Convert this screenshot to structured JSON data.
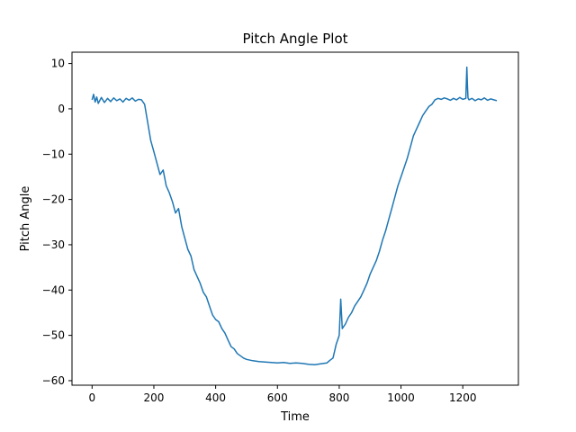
{
  "chart_data": {
    "type": "line",
    "title": "Pitch Angle Plot",
    "xlabel": "Time",
    "ylabel": "Pitch Angle",
    "xlim": [
      -65,
      1380
    ],
    "ylim": [
      -61,
      12.5
    ],
    "x_ticks": [
      0,
      200,
      400,
      600,
      800,
      1000,
      1200
    ],
    "y_ticks": [
      10,
      0,
      -10,
      -20,
      -30,
      -40,
      -50,
      -60
    ],
    "x_tick_labels": [
      "0",
      "200",
      "400",
      "600",
      "800",
      "1000",
      "1200"
    ],
    "y_tick_labels": [
      "10",
      "0",
      "−10",
      "−20",
      "−30",
      "−40",
      "−50",
      "−60"
    ],
    "grid": false,
    "series": [
      {
        "color": "#1f77b4",
        "x": [
          0,
          5,
          10,
          15,
          20,
          30,
          40,
          50,
          60,
          70,
          80,
          90,
          100,
          110,
          120,
          130,
          140,
          150,
          160,
          170,
          180,
          190,
          200,
          210,
          220,
          230,
          240,
          250,
          260,
          270,
          280,
          290,
          300,
          310,
          320,
          330,
          340,
          350,
          360,
          370,
          380,
          390,
          400,
          410,
          420,
          430,
          440,
          450,
          460,
          470,
          480,
          490,
          500,
          520,
          540,
          560,
          580,
          600,
          620,
          640,
          660,
          680,
          700,
          720,
          740,
          760,
          770,
          780,
          785,
          790,
          795,
          800,
          805,
          810,
          820,
          830,
          840,
          850,
          860,
          870,
          880,
          890,
          900,
          910,
          920,
          930,
          940,
          950,
          960,
          970,
          980,
          990,
          1000,
          1010,
          1020,
          1030,
          1040,
          1050,
          1060,
          1070,
          1080,
          1090,
          1100,
          1110,
          1120,
          1130,
          1140,
          1150,
          1160,
          1170,
          1180,
          1190,
          1200,
          1210,
          1213,
          1215,
          1217,
          1220,
          1230,
          1240,
          1250,
          1260,
          1270,
          1280,
          1290,
          1300,
          1310
        ],
        "y": [
          2.0,
          3.2,
          1.5,
          2.6,
          1.2,
          2.5,
          1.4,
          2.3,
          1.6,
          2.4,
          1.8,
          2.2,
          1.5,
          2.3,
          1.9,
          2.4,
          1.7,
          2.1,
          2.0,
          1.0,
          -3.0,
          -7.0,
          -9.5,
          -12.0,
          -14.5,
          -13.5,
          -17.0,
          -18.5,
          -20.5,
          -23.0,
          -22.0,
          -26.0,
          -28.5,
          -31.0,
          -32.5,
          -35.5,
          -37.0,
          -38.5,
          -40.5,
          -41.5,
          -43.5,
          -45.5,
          -46.5,
          -47.0,
          -48.5,
          -49.5,
          -51.0,
          -52.5,
          -53.0,
          -54.0,
          -54.5,
          -55.0,
          -55.3,
          -55.6,
          -55.8,
          -55.9,
          -56.0,
          -56.1,
          -56.0,
          -56.2,
          -56.1,
          -56.2,
          -56.4,
          -56.5,
          -56.3,
          -56.1,
          -55.5,
          -55.0,
          -53.5,
          -52.0,
          -51.0,
          -50.0,
          -42.0,
          -48.5,
          -47.5,
          -46.0,
          -45.0,
          -43.5,
          -42.5,
          -41.5,
          -40.0,
          -38.5,
          -36.5,
          -35.0,
          -33.5,
          -31.5,
          -29.0,
          -27.0,
          -24.5,
          -22.0,
          -19.5,
          -17.0,
          -15.0,
          -13.0,
          -11.0,
          -8.5,
          -6.0,
          -4.5,
          -3.0,
          -1.5,
          -0.5,
          0.5,
          1.0,
          2.0,
          2.3,
          2.1,
          2.4,
          2.2,
          1.9,
          2.3,
          2.0,
          2.5,
          2.1,
          2.3,
          9.2,
          5.0,
          2.4,
          2.0,
          2.3,
          1.8,
          2.2,
          2.0,
          2.4,
          1.9,
          2.2,
          2.0,
          1.8
        ]
      }
    ]
  }
}
